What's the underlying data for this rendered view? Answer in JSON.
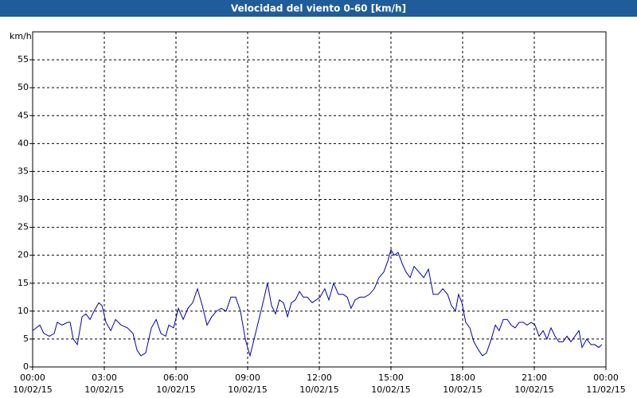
{
  "chart_data": {
    "type": "line",
    "title": "Velocidad del viento 0-60 [km/h]",
    "y_label": "km/h",
    "xlim": [
      0,
      24
    ],
    "xticks": [
      {
        "value": 0,
        "label": "00:00"
      },
      {
        "value": 3,
        "label": "03:00"
      },
      {
        "value": 6,
        "label": "06:00"
      },
      {
        "value": 9,
        "label": "09:00"
      },
      {
        "value": 12,
        "label": "12:00"
      },
      {
        "value": 15,
        "label": "15:00"
      },
      {
        "value": 18,
        "label": "18:00"
      },
      {
        "value": 21,
        "label": "21:00"
      },
      {
        "value": 24,
        "label": "00:00"
      }
    ],
    "xtick_dates": [
      "10/02/15",
      "10/02/15",
      "10/02/15",
      "10/02/15",
      "10/02/15",
      "10/02/15",
      "10/02/15",
      "10/02/15",
      "11/02/15"
    ],
    "ylim": [
      0,
      60
    ],
    "yticks": [
      0,
      5,
      10,
      15,
      20,
      25,
      30,
      35,
      40,
      45,
      50,
      55
    ],
    "grid": true,
    "series": [
      {
        "name": "Velocidad del viento",
        "color": "#0000b0",
        "x": [
          0,
          0.3,
          0.47,
          0.7,
          0.9,
          1.03,
          1.23,
          1.47,
          1.57,
          1.7,
          1.87,
          2.07,
          2.23,
          2.4,
          2.57,
          2.77,
          2.9,
          3.07,
          3.27,
          3.47,
          3.7,
          3.97,
          4.2,
          4.37,
          4.53,
          4.73,
          4.97,
          5.17,
          5.37,
          5.57,
          5.7,
          5.9,
          6.1,
          6.3,
          6.5,
          6.7,
          6.9,
          7.1,
          7.3,
          7.5,
          7.7,
          7.9,
          8.1,
          8.3,
          8.5,
          8.7,
          8.9,
          9.1,
          9.3,
          9.5,
          9.67,
          9.83,
          10,
          10.17,
          10.33,
          10.5,
          10.67,
          10.83,
          11,
          11.17,
          11.33,
          11.5,
          11.7,
          11.87,
          12.03,
          12.23,
          12.4,
          12.6,
          12.8,
          13,
          13.17,
          13.33,
          13.5,
          13.7,
          13.9,
          14.1,
          14.3,
          14.5,
          14.7,
          14.87,
          15,
          15.13,
          15.3,
          15.47,
          15.63,
          15.8,
          15.97,
          16.17,
          16.37,
          16.57,
          16.77,
          16.97,
          17.17,
          17.37,
          17.53,
          17.7,
          17.83,
          17.97,
          18.13,
          18.3,
          18.47,
          18.67,
          18.83,
          19,
          19.2,
          19.37,
          19.53,
          19.7,
          19.87,
          20.03,
          20.2,
          20.37,
          20.53,
          20.7,
          20.87,
          21.03,
          21.2,
          21.37,
          21.53,
          21.7,
          21.87,
          22.03,
          22.2,
          22.37,
          22.53,
          22.7,
          22.87,
          23,
          23.2,
          23.37,
          23.53,
          23.7,
          23.83
        ],
        "values": [
          6.5,
          7.5,
          6,
          5.5,
          6,
          8,
          7.5,
          8,
          8,
          5,
          4,
          9,
          9.5,
          8.5,
          10,
          11.5,
          11,
          8,
          6.5,
          8.5,
          7.5,
          7,
          6,
          3,
          2,
          2.5,
          7,
          8.5,
          6,
          5.5,
          7.5,
          7,
          10.5,
          8.5,
          10.5,
          11.5,
          14,
          11,
          7.5,
          9,
          10,
          10.5,
          10,
          12.5,
          12.5,
          10,
          5,
          2,
          5.5,
          9,
          12,
          15,
          11,
          9.5,
          12,
          11.5,
          9,
          11.5,
          12,
          13.5,
          12.5,
          12.5,
          11.5,
          12,
          12.5,
          14,
          12,
          15,
          13,
          13,
          12.5,
          10.5,
          12,
          12.5,
          12.5,
          13,
          14,
          16,
          17,
          19,
          21,
          20,
          20.5,
          18.5,
          17,
          16,
          18,
          17,
          16,
          17.5,
          13,
          13,
          14,
          13,
          11,
          10,
          13,
          11.5,
          8,
          7,
          4.5,
          3,
          2,
          2.5,
          5,
          7.5,
          6.5,
          8.5,
          8.5,
          7.5,
          7,
          8,
          8,
          7.5,
          8,
          7.5,
          5.5,
          6.5,
          5,
          7,
          5.5,
          4.5,
          4.5,
          5.5,
          4.5,
          5.5,
          6.5,
          3.5,
          5,
          4,
          4,
          3.5,
          4
        ]
      }
    ]
  }
}
